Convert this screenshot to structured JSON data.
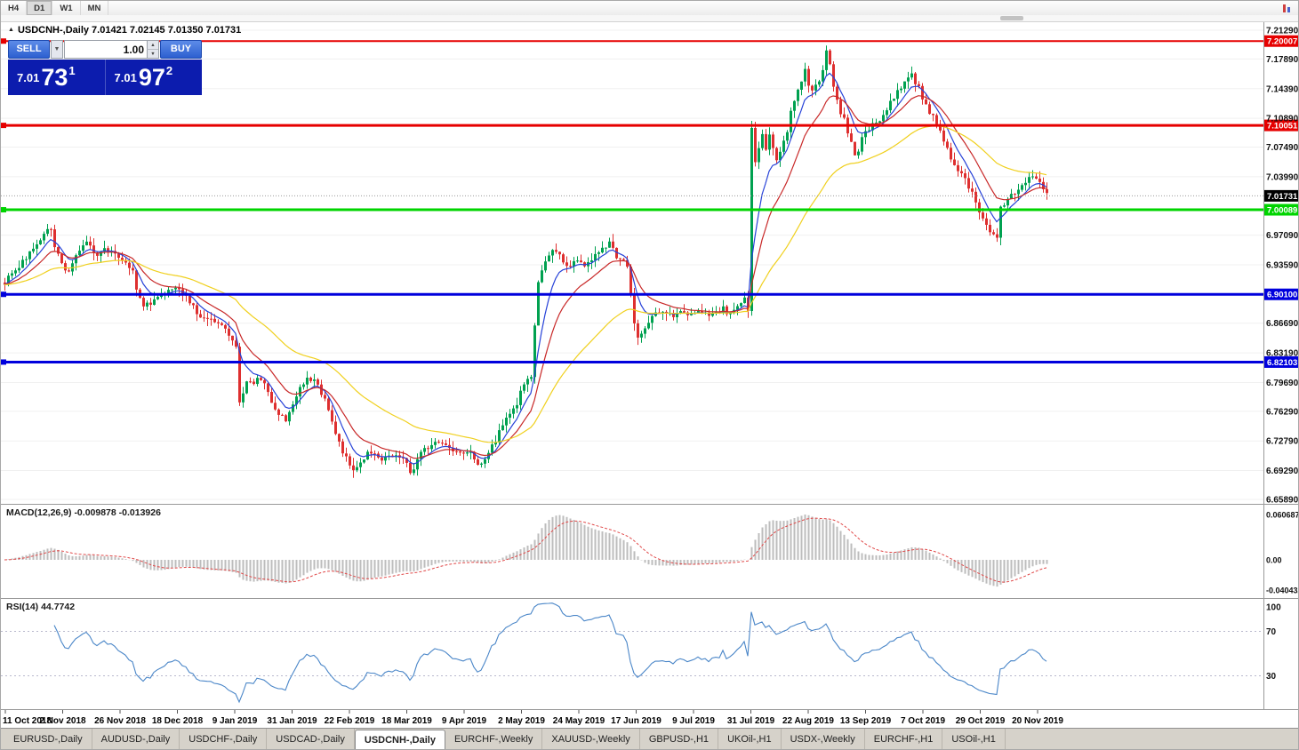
{
  "toolbar": {
    "timeframes": [
      "H4",
      "D1",
      "W1",
      "MN"
    ],
    "active": "D1"
  },
  "chart_header": {
    "title": "USDCNH-,Daily 7.01421 7.02145 7.01350 7.01731"
  },
  "icons": {
    "collapse": "▲",
    "caret_down": "▼",
    "spin_up": "▲",
    "spin_down": "▼"
  },
  "trade_panel": {
    "sell_label": "SELL",
    "buy_label": "BUY",
    "volume": "1.00",
    "sell_price_small": "7.01",
    "sell_price_large": "73",
    "sell_price_sup": "1",
    "buy_price_small": "7.01",
    "buy_price_large": "97",
    "buy_price_sup": "2"
  },
  "indicators": {
    "macd_label": "MACD(12,26,9) -0.009878 -0.013926",
    "rsi_label": "RSI(14) 44.7742"
  },
  "tabs": {
    "items": [
      "EURUSD-,Daily",
      "AUDUSD-,Daily",
      "USDCHF-,Daily",
      "USDCAD-,Daily",
      "USDCNH-,Daily",
      "EURCHF-,Weekly",
      "XAUUSD-,Weekly",
      "GBPUSD-,H1",
      "UKOil-,H1",
      "USDX-,Weekly",
      "EURCHF-,H1",
      "USOil-,H1"
    ],
    "active_index": 4
  },
  "chart_data": {
    "type": "candlestick",
    "symbol": "USDCNH-,Daily",
    "ohlc": {
      "open": "7.01421",
      "high": "7.02145",
      "low": "7.01350",
      "close": "7.01731"
    },
    "candle_spacing": 4,
    "candle_width": 3,
    "y_axis": {
      "max": 7.2129,
      "min": 6.6589,
      "labels": [
        {
          "v": 7.2129,
          "t": "7.21290"
        },
        {
          "v": 7.1789,
          "t": "7.17890"
        },
        {
          "v": 7.1439,
          "t": "7.14390"
        },
        {
          "v": 7.1089,
          "t": "7.10890"
        },
        {
          "v": 7.0749,
          "t": "7.07490"
        },
        {
          "v": 7.0399,
          "t": "7.03990"
        },
        {
          "v": 6.9709,
          "t": "6.97090"
        },
        {
          "v": 6.9359,
          "t": "6.93590"
        },
        {
          "v": 6.8669,
          "t": "6.86690"
        },
        {
          "v": 6.8319,
          "t": "6.83190"
        },
        {
          "v": 6.7969,
          "t": "6.79690"
        },
        {
          "v": 6.7629,
          "t": "6.76290"
        },
        {
          "v": 6.7279,
          "t": "6.72790"
        },
        {
          "v": 6.6929,
          "t": "6.69290"
        },
        {
          "v": 6.6589,
          "t": "6.65890"
        }
      ]
    },
    "price_lines": [
      {
        "price": 7.20007,
        "label": "7.20007",
        "color": "#e60000",
        "width": 2
      },
      {
        "price": 7.10051,
        "label": "7.10051",
        "color": "#e60000",
        "width": 3
      },
      {
        "price": 7.00089,
        "label": "7.00089",
        "color": "#00d400",
        "width": 3
      },
      {
        "price": 6.901,
        "label": "6.90100",
        "color": "#0000dd",
        "width": 3
      },
      {
        "price": 6.82103,
        "label": "6.82103",
        "color": "#0000dd",
        "width": 3
      }
    ],
    "current_price": {
      "value": 7.01731,
      "label": "7.01731"
    },
    "x_axis_labels": [
      "11 Oct 2018",
      "2 Nov 2018",
      "26 Nov 2018",
      "18 Dec 2018",
      "9 Jan 2019",
      "31 Jan 2019",
      "22 Feb 2019",
      "18 Mar 2019",
      "9 Apr 2019",
      "2 May 2019",
      "24 May 2019",
      "17 Jun 2019",
      "9 Jul 2019",
      "31 Jul 2019",
      "22 Aug 2019",
      "13 Sep 2019",
      "7 Oct 2019",
      "29 Oct 2019",
      "20 Nov 2019"
    ],
    "macd_axis": {
      "labels": [
        "0.060687",
        "0.00",
        "-0.040432"
      ],
      "values": [
        0.060687,
        0,
        -0.040432
      ]
    },
    "rsi_axis": {
      "labels": [
        "100",
        "70",
        "30"
      ],
      "values": [
        100,
        70,
        30
      ],
      "levels": [
        70,
        30
      ]
    },
    "colors": {
      "bull": "#00a150",
      "bear": "#de2f2f",
      "ma_fast": "#2742d8",
      "ma_mid": "#c82828",
      "ma_slow": "#f0d01e",
      "macd_hist": "#bdbdbd",
      "macd_signal": "#e04848",
      "rsi": "#4a86c8"
    },
    "price_path": [
      [
        4,
        6.915
      ],
      [
        10,
        6.922
      ],
      [
        16,
        6.928
      ],
      [
        24,
        6.94
      ],
      [
        32,
        6.95
      ],
      [
        40,
        6.958
      ],
      [
        48,
        6.972
      ],
      [
        54,
        6.984
      ],
      [
        58,
        6.968
      ],
      [
        62,
        6.95
      ],
      [
        68,
        6.938
      ],
      [
        74,
        6.926
      ],
      [
        80,
        6.938
      ],
      [
        88,
        6.952
      ],
      [
        94,
        6.964
      ],
      [
        100,
        6.957
      ],
      [
        106,
        6.948
      ],
      [
        112,
        6.95
      ],
      [
        118,
        6.956
      ],
      [
        124,
        6.95
      ],
      [
        130,
        6.947
      ],
      [
        136,
        6.944
      ],
      [
        142,
        6.937
      ],
      [
        148,
        6.928
      ],
      [
        154,
        6.9
      ],
      [
        160,
        6.887
      ],
      [
        166,
        6.89
      ],
      [
        172,
        6.896
      ],
      [
        180,
        6.902
      ],
      [
        188,
        6.908
      ],
      [
        196,
        6.912
      ],
      [
        204,
        6.904
      ],
      [
        212,
        6.892
      ],
      [
        220,
        6.88
      ],
      [
        228,
        6.87
      ],
      [
        236,
        6.872
      ],
      [
        244,
        6.868
      ],
      [
        252,
        6.858
      ],
      [
        258,
        6.85
      ],
      [
        264,
        6.838
      ],
      [
        268,
        6.776
      ],
      [
        272,
        6.786
      ],
      [
        278,
        6.8
      ],
      [
        284,
        6.796
      ],
      [
        290,
        6.804
      ],
      [
        296,
        6.794
      ],
      [
        302,
        6.78
      ],
      [
        308,
        6.768
      ],
      [
        314,
        6.758
      ],
      [
        320,
        6.752
      ],
      [
        326,
        6.764
      ],
      [
        332,
        6.78
      ],
      [
        338,
        6.795
      ],
      [
        344,
        6.803
      ],
      [
        350,
        6.8
      ],
      [
        356,
        6.792
      ],
      [
        362,
        6.782
      ],
      [
        368,
        6.766
      ],
      [
        374,
        6.744
      ],
      [
        380,
        6.724
      ],
      [
        386,
        6.71
      ],
      [
        392,
        6.7
      ],
      [
        398,
        6.693
      ],
      [
        404,
        6.702
      ],
      [
        410,
        6.712
      ],
      [
        416,
        6.714
      ],
      [
        422,
        6.71
      ],
      [
        428,
        6.703
      ],
      [
        434,
        6.707
      ],
      [
        440,
        6.71
      ],
      [
        446,
        6.713
      ],
      [
        452,
        6.709
      ],
      [
        458,
        6.701
      ],
      [
        462,
        6.679
      ],
      [
        466,
        6.705
      ],
      [
        472,
        6.714
      ],
      [
        478,
        6.719
      ],
      [
        484,
        6.724
      ],
      [
        490,
        6.729
      ],
      [
        496,
        6.726
      ],
      [
        502,
        6.721
      ],
      [
        508,
        6.717
      ],
      [
        514,
        6.714
      ],
      [
        520,
        6.712
      ],
      [
        526,
        6.714
      ],
      [
        532,
        6.708
      ],
      [
        538,
        6.7
      ],
      [
        544,
        6.708
      ],
      [
        550,
        6.72
      ],
      [
        556,
        6.728
      ],
      [
        562,
        6.742
      ],
      [
        568,
        6.752
      ],
      [
        574,
        6.76
      ],
      [
        580,
        6.773
      ],
      [
        586,
        6.789
      ],
      [
        592,
        6.799
      ],
      [
        596,
        6.801
      ],
      [
        600,
        6.866
      ],
      [
        604,
        6.918
      ],
      [
        608,
        6.93
      ],
      [
        612,
        6.94
      ],
      [
        618,
        6.95
      ],
      [
        624,
        6.954
      ],
      [
        630,
        6.944
      ],
      [
        636,
        6.933
      ],
      [
        642,
        6.94
      ],
      [
        648,
        6.941
      ],
      [
        654,
        6.936
      ],
      [
        660,
        6.94
      ],
      [
        666,
        6.946
      ],
      [
        672,
        6.951
      ],
      [
        678,
        6.957
      ],
      [
        684,
        6.961
      ],
      [
        690,
        6.949
      ],
      [
        696,
        6.941
      ],
      [
        702,
        6.938
      ],
      [
        706,
        6.928
      ],
      [
        710,
        6.871
      ],
      [
        716,
        6.852
      ],
      [
        722,
        6.859
      ],
      [
        728,
        6.869
      ],
      [
        734,
        6.879
      ],
      [
        740,
        6.881
      ],
      [
        746,
        6.875
      ],
      [
        752,
        6.879
      ],
      [
        758,
        6.875
      ],
      [
        764,
        6.879
      ],
      [
        770,
        6.881
      ],
      [
        776,
        6.877
      ],
      [
        782,
        6.879
      ],
      [
        788,
        6.881
      ],
      [
        794,
        6.876
      ],
      [
        800,
        6.878
      ],
      [
        806,
        6.881
      ],
      [
        812,
        6.884
      ],
      [
        818,
        6.879
      ],
      [
        824,
        6.883
      ],
      [
        830,
        6.887
      ],
      [
        836,
        6.899
      ],
      [
        840,
        6.881
      ],
      [
        844,
        7.094
      ],
      [
        848,
        7.059
      ],
      [
        852,
        7.074
      ],
      [
        856,
        7.087
      ],
      [
        860,
        7.069
      ],
      [
        864,
        7.087
      ],
      [
        868,
        7.077
      ],
      [
        872,
        7.059
      ],
      [
        876,
        7.067
      ],
      [
        880,
        7.084
      ],
      [
        884,
        7.094
      ],
      [
        888,
        7.119
      ],
      [
        892,
        7.129
      ],
      [
        896,
        7.144
      ],
      [
        900,
        7.154
      ],
      [
        904,
        7.164
      ],
      [
        908,
        7.149
      ],
      [
        912,
        7.139
      ],
      [
        916,
        7.147
      ],
      [
        920,
        7.154
      ],
      [
        924,
        7.169
      ],
      [
        928,
        7.187
      ],
      [
        932,
        7.174
      ],
      [
        936,
        7.149
      ],
      [
        940,
        7.131
      ],
      [
        944,
        7.117
      ],
      [
        948,
        7.107
      ],
      [
        952,
        7.094
      ],
      [
        956,
        7.081
      ],
      [
        960,
        7.067
      ],
      [
        964,
        7.071
      ],
      [
        968,
        7.084
      ],
      [
        972,
        7.091
      ],
      [
        976,
        7.097
      ],
      [
        980,
        7.101
      ],
      [
        984,
        7.107
      ],
      [
        988,
        7.103
      ],
      [
        992,
        7.111
      ],
      [
        996,
        7.119
      ],
      [
        1000,
        7.127
      ],
      [
        1004,
        7.134
      ],
      [
        1008,
        7.139
      ],
      [
        1012,
        7.144
      ],
      [
        1016,
        7.149
      ],
      [
        1020,
        7.154
      ],
      [
        1024,
        7.159
      ],
      [
        1028,
        7.151
      ],
      [
        1032,
        7.144
      ],
      [
        1036,
        7.131
      ],
      [
        1040,
        7.124
      ],
      [
        1044,
        7.117
      ],
      [
        1048,
        7.111
      ],
      [
        1052,
        7.104
      ],
      [
        1056,
        7.094
      ],
      [
        1060,
        7.084
      ],
      [
        1064,
        7.071
      ],
      [
        1068,
        7.061
      ],
      [
        1072,
        7.054
      ],
      [
        1076,
        7.049
      ],
      [
        1080,
        7.044
      ],
      [
        1084,
        7.037
      ],
      [
        1088,
        7.029
      ],
      [
        1092,
        7.021
      ],
      [
        1096,
        7.011
      ],
      [
        1100,
        7.001
      ],
      [
        1104,
        6.991
      ],
      [
        1108,
        6.984
      ],
      [
        1112,
        6.977
      ],
      [
        1116,
        6.969
      ],
      [
        1120,
        6.967
      ],
      [
        1124,
        7.001
      ],
      [
        1128,
        7.009
      ],
      [
        1132,
        7.014
      ],
      [
        1136,
        7.017
      ],
      [
        1140,
        7.021
      ],
      [
        1144,
        7.027
      ],
      [
        1148,
        7.031
      ],
      [
        1152,
        7.035
      ],
      [
        1156,
        7.039
      ],
      [
        1160,
        7.043
      ],
      [
        1164,
        7.041
      ],
      [
        1168,
        7.034
      ],
      [
        1172,
        7.024
      ],
      [
        1176,
        7.0173
      ]
    ]
  }
}
